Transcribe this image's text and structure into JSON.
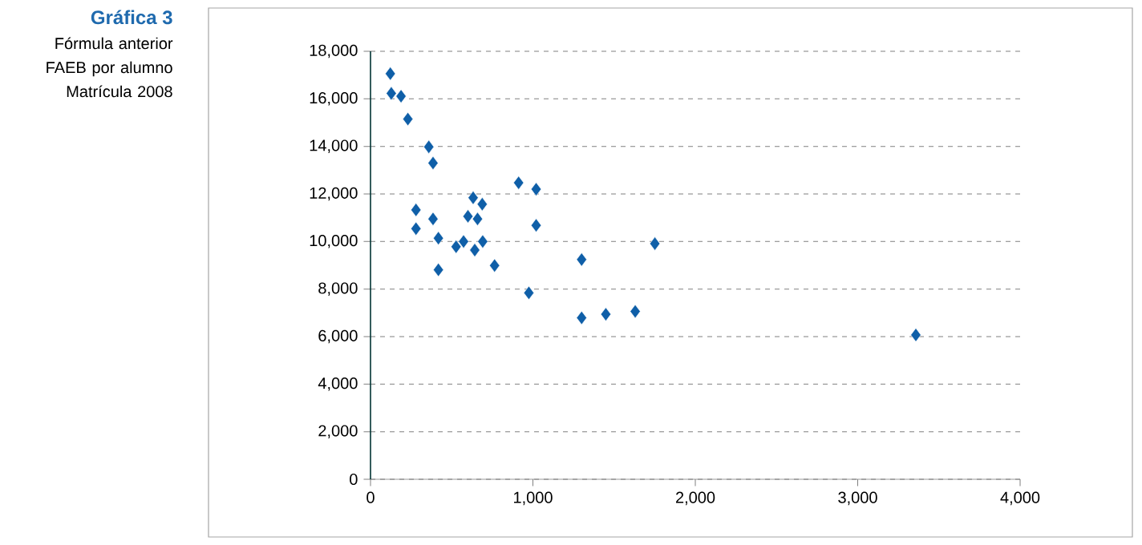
{
  "chart_data": {
    "type": "scatter",
    "title": "Gráfica 3",
    "subtitle": "Fórmula anterior FAEB por alumno Matrícula 2008",
    "x": [
      122,
      128,
      188,
      230,
      359,
      385,
      912,
      1020,
      632,
      688,
      280,
      385,
      600,
      659,
      280,
      1020,
      418,
      527,
      573,
      642,
      691,
      1751,
      418,
      764,
      1300,
      975,
      1300,
      1449,
      1630,
      3358
    ],
    "values": [
      17060,
      16230,
      16110,
      15150,
      13980,
      13300,
      12470,
      12200,
      11840,
      11570,
      11330,
      10950,
      11060,
      10950,
      10540,
      10680,
      10140,
      9780,
      10000,
      9640,
      10000,
      9910,
      8810,
      8990,
      9240,
      7840,
      6790,
      6940,
      7060,
      6070
    ],
    "color": "#0f5fa8",
    "marker": "diamond",
    "grid": "y",
    "xlim": [
      0,
      4000
    ],
    "ylim": [
      0,
      18000
    ],
    "xticks": [
      0,
      {
        "value": 1000,
        "label": "1,000"
      },
      {
        "value": 2000,
        "label": "2,000"
      },
      {
        "value": 3000,
        "label": "3,000"
      },
      {
        "value": 4000,
        "label": "4,000"
      }
    ],
    "yticks": [
      0,
      {
        "value": 2000,
        "label": "2,000"
      },
      {
        "value": 4000,
        "label": "4,000"
      },
      {
        "value": 6000,
        "label": "6,000"
      },
      {
        "value": 8000,
        "label": "8,000"
      },
      {
        "value": 10000,
        "label": "10,000"
      },
      {
        "value": 12000,
        "label": "12,000"
      },
      {
        "value": 14000,
        "label": "14,000"
      },
      {
        "value": 16000,
        "label": "16,000"
      },
      {
        "value": 18000,
        "label": "18,000"
      }
    ]
  }
}
